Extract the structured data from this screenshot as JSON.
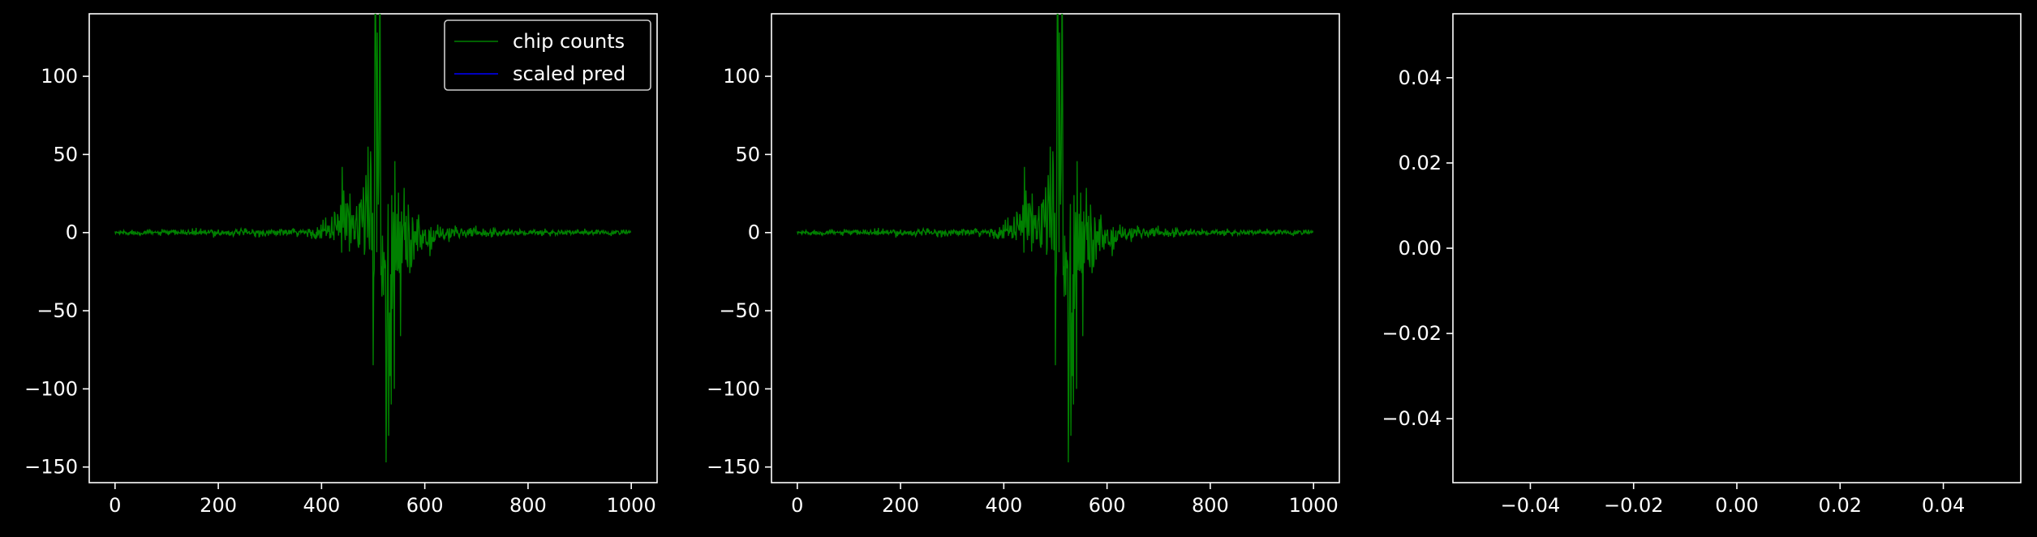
{
  "colors": {
    "background": "#000000",
    "axes": "#ffffff",
    "chip_counts": "#008000",
    "scaled_pred": "#0000ff"
  },
  "chart_data": [
    {
      "type": "line",
      "title": "",
      "xlabel": "",
      "ylabel": "",
      "xlim": [
        -50,
        1050
      ],
      "ylim": [
        -160,
        140
      ],
      "xticks": [
        0,
        200,
        400,
        600,
        800,
        1000
      ],
      "yticks": [
        -150,
        -100,
        -50,
        0,
        50,
        100
      ],
      "xtick_labels": [
        "0",
        "200",
        "400",
        "600",
        "800",
        "1000"
      ],
      "ytick_labels": [
        "−150",
        "−100",
        "−50",
        "0",
        "50",
        "100"
      ],
      "legend": {
        "position": "upper right",
        "entries": [
          "chip counts",
          "scaled pred"
        ]
      },
      "grid": false,
      "series": [
        {
          "name": "chip counts",
          "color": "#008000",
          "x_range": [
            0,
            999
          ],
          "envelope": [
            [
              0,
              1.5
            ],
            [
              100,
              1.5
            ],
            [
              200,
              2
            ],
            [
              300,
              2
            ],
            [
              380,
              3
            ],
            [
              400,
              5
            ],
            [
              420,
              10
            ],
            [
              450,
              20
            ],
            [
              480,
              28
            ],
            [
              500,
              60
            ],
            [
              505,
              130
            ],
            [
              510,
              100
            ],
            [
              520,
              50
            ],
            [
              530,
              90
            ],
            [
              540,
              60
            ],
            [
              560,
              30
            ],
            [
              580,
              15
            ],
            [
              600,
              8
            ],
            [
              650,
              4
            ],
            [
              700,
              3
            ],
            [
              800,
              2
            ],
            [
              999,
              1.5
            ]
          ],
          "peaks": [
            [
              505,
              133
            ],
            [
              508,
              128
            ],
            [
              512,
              85
            ],
            [
              520,
              -40
            ],
            [
              525,
              -147
            ],
            [
              530,
              -130
            ],
            [
              535,
              -110
            ],
            [
              541,
              -100
            ],
            [
              495,
              52
            ],
            [
              490,
              55
            ],
            [
              440,
              42
            ],
            [
              455,
              25
            ]
          ]
        },
        {
          "name": "scaled pred",
          "color": "#0000ff",
          "x_range": [
            0,
            999
          ],
          "values_note_hidden": true
        }
      ]
    },
    {
      "type": "line",
      "title": "",
      "xlabel": "",
      "ylabel": "",
      "xlim": [
        -50,
        1050
      ],
      "ylim": [
        -160,
        140
      ],
      "xticks": [
        0,
        200,
        400,
        600,
        800,
        1000
      ],
      "yticks": [
        -150,
        -100,
        -50,
        0,
        50,
        100
      ],
      "xtick_labels": [
        "0",
        "200",
        "400",
        "600",
        "800",
        "1000"
      ],
      "ytick_labels": [
        "−150",
        "−100",
        "−50",
        "0",
        "50",
        "100"
      ],
      "grid": false,
      "series": [
        {
          "color": "#008000",
          "x_range": [
            0,
            999
          ],
          "envelope": [
            [
              0,
              1.5
            ],
            [
              100,
              1.5
            ],
            [
              200,
              2
            ],
            [
              300,
              2
            ],
            [
              380,
              3
            ],
            [
              400,
              5
            ],
            [
              420,
              10
            ],
            [
              450,
              20
            ],
            [
              480,
              28
            ],
            [
              500,
              60
            ],
            [
              505,
              130
            ],
            [
              510,
              100
            ],
            [
              520,
              50
            ],
            [
              530,
              90
            ],
            [
              540,
              60
            ],
            [
              560,
              30
            ],
            [
              580,
              15
            ],
            [
              600,
              8
            ],
            [
              650,
              4
            ],
            [
              700,
              3
            ],
            [
              800,
              2
            ],
            [
              999,
              1.5
            ]
          ],
          "peaks": [
            [
              505,
              133
            ],
            [
              508,
              128
            ],
            [
              512,
              85
            ],
            [
              520,
              -40
            ],
            [
              525,
              -147
            ],
            [
              530,
              -130
            ],
            [
              535,
              -110
            ],
            [
              541,
              -100
            ],
            [
              495,
              52
            ],
            [
              490,
              55
            ],
            [
              440,
              42
            ],
            [
              455,
              25
            ]
          ]
        }
      ]
    },
    {
      "type": "line",
      "title": "",
      "xlabel": "",
      "ylabel": "",
      "xlim": [
        -0.055,
        0.055
      ],
      "ylim": [
        -0.055,
        0.055
      ],
      "xticks": [
        -0.04,
        -0.02,
        0.0,
        0.02,
        0.04
      ],
      "yticks": [
        -0.04,
        -0.02,
        0.0,
        0.02,
        0.04
      ],
      "xtick_labels": [
        "−0.04",
        "−0.02",
        "0.00",
        "0.02",
        "0.04"
      ],
      "ytick_labels": [
        "−0.04",
        "−0.02",
        "0.00",
        "0.02",
        "0.04"
      ],
      "grid": false,
      "series": []
    }
  ]
}
